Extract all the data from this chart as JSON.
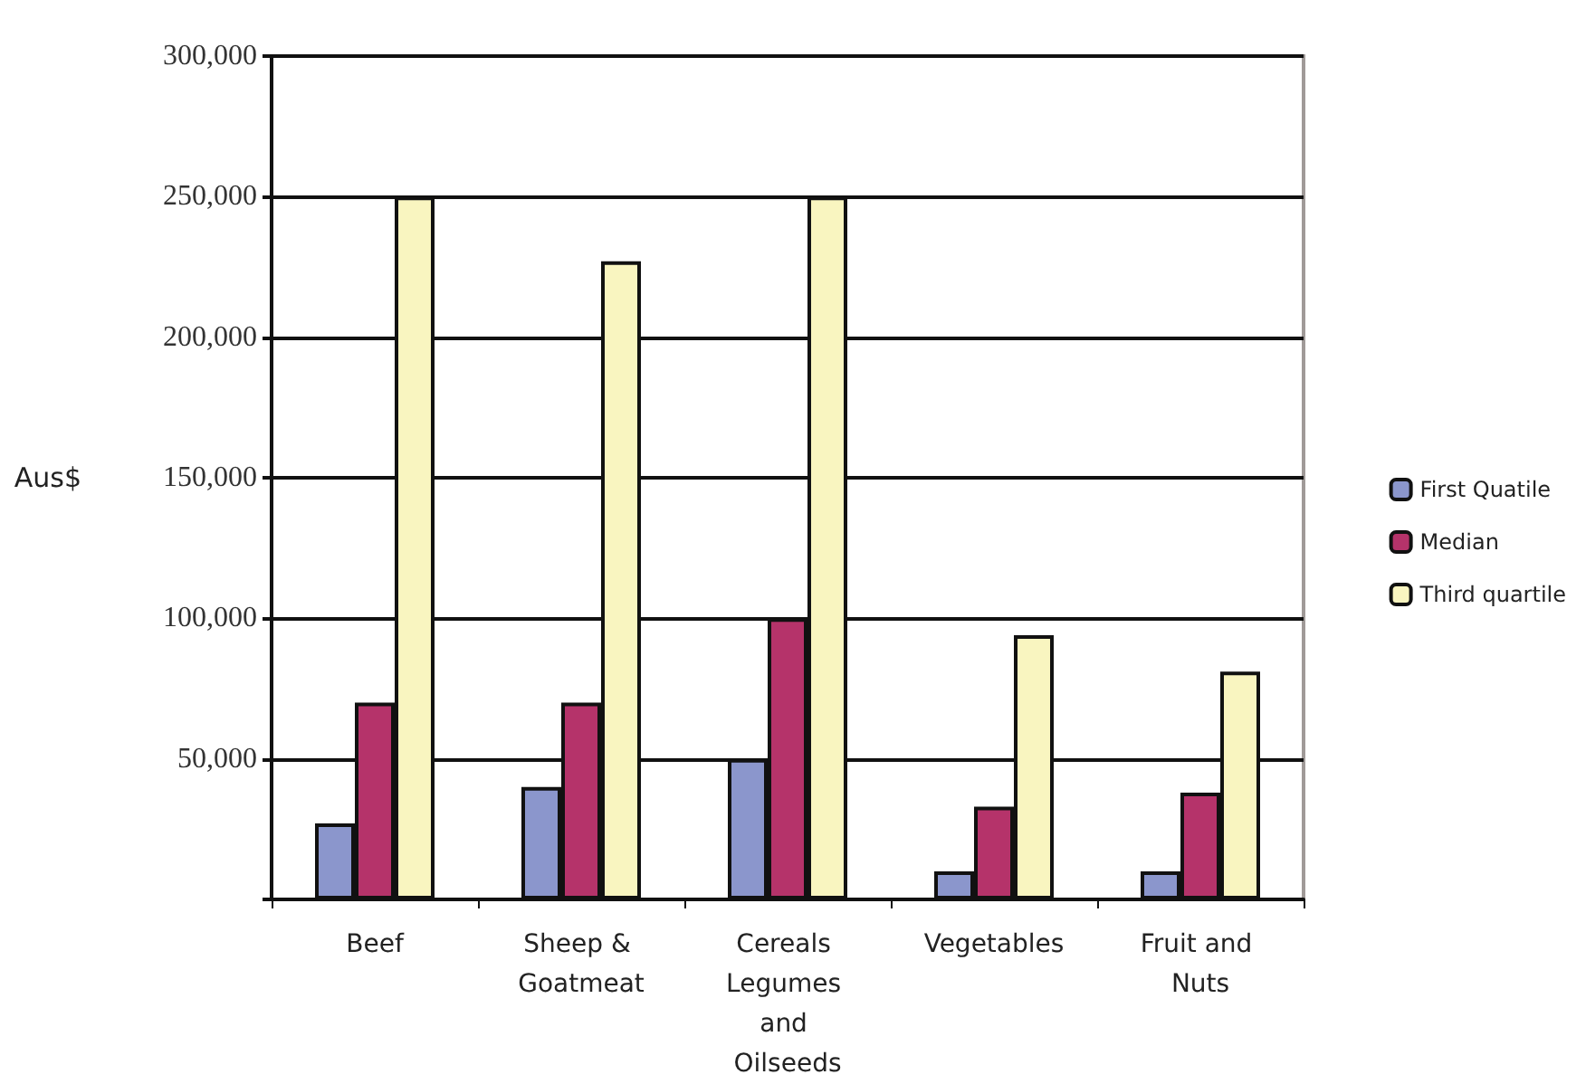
{
  "chart_data": {
    "type": "bar",
    "ylabel": "Aus$",
    "categories": [
      "Beef",
      "Sheep & Goatmeat",
      "Cereals Legumes and Oilseeds",
      "Vegetables",
      "Fruit and Nuts"
    ],
    "series": [
      {
        "name": "First Quatile",
        "color": "#8b96cc",
        "values": [
          27000,
          40000,
          50000,
          10000,
          10000
        ]
      },
      {
        "name": "Median",
        "color": "#b5336a",
        "values": [
          70000,
          70000,
          100000,
          33000,
          38000
        ]
      },
      {
        "name": "Third quartile",
        "color": "#f9f5c0",
        "values": [
          250000,
          227000,
          250000,
          94000,
          81000
        ]
      }
    ],
    "ylim": [
      0,
      300000
    ],
    "yticks": [
      {
        "value": 0,
        "label": null
      },
      {
        "value": 50000,
        "label": "50,000"
      },
      {
        "value": 100000,
        "label": "100,000"
      },
      {
        "value": 150000,
        "label": "150,000"
      },
      {
        "value": 200000,
        "label": "200,000"
      },
      {
        "value": 250000,
        "label": "250,000"
      },
      {
        "value": 300000,
        "label": "300,000"
      }
    ],
    "grid": "y",
    "legend": "right"
  }
}
